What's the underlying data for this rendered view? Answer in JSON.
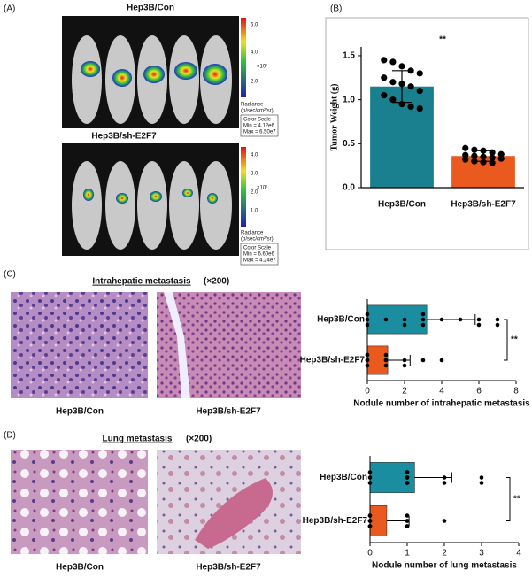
{
  "figure": {
    "panel_labels": [
      "(A)",
      "(B)",
      "(C)",
      "(D)"
    ],
    "panel_a": {
      "groups": [
        {
          "name": "Hep3B/Con",
          "scale_ticks": [
            "6.0",
            "4.0",
            "2.0"
          ],
          "exponent": "×10⁷",
          "radiance": "Radiance",
          "radiance_unit": "(p/sec/cm²/sr)",
          "color_scale": "Color Scale",
          "min": "Min = 4.12e6",
          "max": "Max = 6.50e7"
        },
        {
          "name": "Hep3B/sh-E2F7",
          "scale_ticks": [
            "4.0",
            "3.0",
            "2.0",
            "1.0"
          ],
          "exponent": "×10⁷",
          "radiance": "Radiance",
          "radiance_unit": "(p/sec/cm²/sr)",
          "color_scale": "Color Scale",
          "min": "Min = 6.60e6",
          "max": "Max = 4.24e7"
        }
      ]
    },
    "panel_c": {
      "title": "Intrahepatic metastasis",
      "magnification": "(×200)",
      "captions": [
        "Hep3B/Con",
        "Hep3B/sh-E2F7"
      ]
    },
    "panel_d": {
      "title": "Lung metastasis",
      "magnification": "(×200)",
      "captions": [
        "Hep3B/Con",
        "Hep3B/sh-E2F7"
      ]
    }
  },
  "chart_data": [
    {
      "type": "bar",
      "orientation": "vertical",
      "y_label": "Tumor Weight (g)",
      "annotation": "**",
      "categories": [
        "Hep3B/Con",
        "Hep3B/sh-E2F7"
      ],
      "values": [
        1.15,
        0.36
      ],
      "errors": [
        0.18,
        0.06
      ],
      "colors": [
        "#1a7f8f",
        "#ea5a1e"
      ],
      "points": [
        [
          1.45,
          1.43,
          1.38,
          1.33,
          1.3,
          1.25,
          1.2,
          1.18,
          1.15,
          1.1,
          1.05,
          1.0,
          0.95,
          0.92,
          0.9
        ],
        [
          0.45,
          0.43,
          0.42,
          0.4,
          0.38,
          0.37,
          0.36,
          0.35,
          0.34,
          0.33,
          0.32,
          0.3,
          0.29,
          0.28
        ]
      ],
      "ylim": [
        0,
        1.6
      ],
      "yticks": [
        {
          "value": 0,
          "label": "0.0"
        },
        {
          "value": 0.5,
          "label": "0.5"
        },
        {
          "value": 1,
          "label": "1.0"
        },
        {
          "value": 1.5,
          "label": "1.5"
        }
      ]
    },
    {
      "type": "bar",
      "orientation": "horizontal",
      "x_label": "Nodule number of intrahepatic metastasis",
      "annotation": "**",
      "categories": [
        "Hep3B/Con",
        "Hep3B/sh-E2F7"
      ],
      "values": [
        3.2,
        1.1
      ],
      "errors": [
        2.6,
        1.2
      ],
      "colors": [
        "#1a8ea0",
        "#ea5a1e"
      ],
      "points": [
        [
          0,
          0,
          0,
          1,
          2,
          2,
          3,
          3,
          3,
          4,
          5,
          6,
          6,
          7,
          7
        ],
        [
          0,
          0,
          0,
          0,
          0,
          0,
          1,
          1,
          1,
          1,
          2,
          2,
          3,
          4
        ]
      ],
      "xlim": [
        0,
        8
      ],
      "xticks": [
        0,
        2,
        4,
        6,
        8
      ]
    },
    {
      "type": "bar",
      "orientation": "horizontal",
      "x_label": "Nodule number of lung metastasis",
      "annotation": "**",
      "categories": [
        "Hep3B/Con",
        "Hep3B/sh-E2F7"
      ],
      "values": [
        1.2,
        0.45
      ],
      "errors": [
        1.0,
        0.6
      ],
      "colors": [
        "#1a8ea0",
        "#ea5a1e"
      ],
      "points": [
        [
          0,
          0,
          0,
          1,
          1,
          1,
          1,
          1,
          1,
          1,
          1,
          2,
          2,
          3,
          3
        ],
        [
          0,
          0,
          0,
          0,
          0,
          0,
          0,
          0,
          1,
          1,
          1,
          1,
          1,
          2
        ]
      ],
      "xlim": [
        0,
        4
      ],
      "xticks": [
        0,
        1,
        2,
        3,
        4
      ]
    }
  ]
}
